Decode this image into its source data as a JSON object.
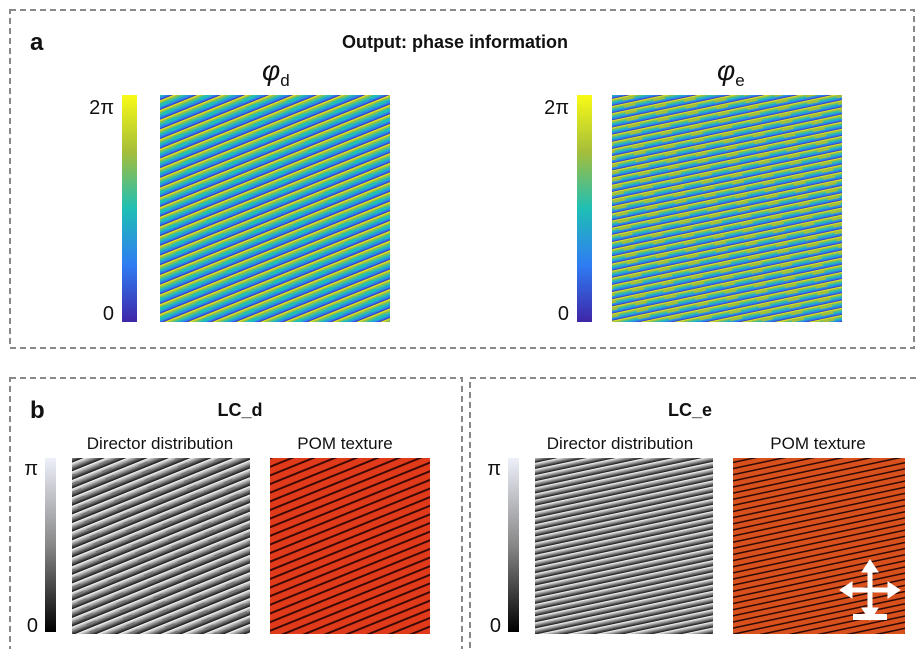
{
  "panel_a": {
    "label": "a",
    "title": "Output: phase information",
    "maps": [
      {
        "symbol": "φ",
        "subscript": "d",
        "colorbar": {
          "max": "2π",
          "min": "0"
        }
      },
      {
        "symbol": "φ",
        "subscript": "e",
        "colorbar": {
          "max": "2π",
          "min": "0"
        }
      }
    ]
  },
  "panel_b": {
    "label": "b",
    "groups": [
      {
        "title": "LC_d",
        "director_label": "Director distribution",
        "pom_label": "POM texture",
        "colorbar": {
          "max": "π",
          "min": "0"
        }
      },
      {
        "title": "LC_e",
        "director_label": "Director distribution",
        "pom_label": "POM texture",
        "colorbar": {
          "max": "π",
          "min": "0"
        }
      }
    ]
  }
}
